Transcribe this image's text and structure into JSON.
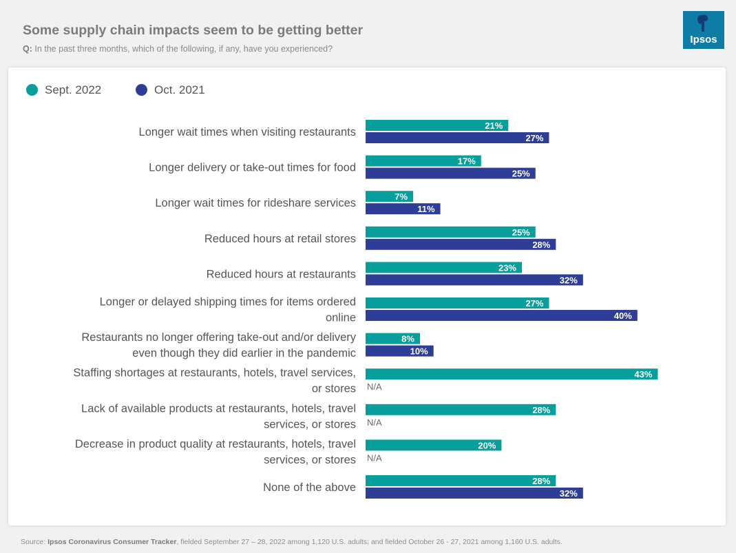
{
  "title": "Some supply chain impacts seem to be getting better",
  "question_prefix": "Q:",
  "question_text": " In the past three months, which of the following, if any, have you experienced?",
  "logo_text": "Ipsos",
  "source_prefix": "Source: ",
  "source_bold": "Ipsos Coronavirus Consumer Tracker",
  "source_rest": ", fielded September 27 – 28, 2022 among 1,120 U.S. adults; and fielded October 26 - 27, 2021 among 1,160 U.S. adults.",
  "colors": {
    "sept2022": "#079e9b",
    "oct2021": "#2e3e96",
    "label_text": "#555555",
    "na_text": "#6b6b6b"
  },
  "chart_data": {
    "type": "bar",
    "orientation": "horizontal",
    "value_suffix": "%",
    "xlim": [
      0,
      45
    ],
    "legend": [
      "Sept. 2022",
      "Oct. 2021"
    ],
    "categories": [
      [
        "Longer wait times when visiting restaurants"
      ],
      [
        "Longer delivery or take-out times for food"
      ],
      [
        "Longer wait times for rideshare services"
      ],
      [
        "Reduced hours at retail stores"
      ],
      [
        "Reduced hours at restaurants"
      ],
      [
        "Longer or delayed shipping times for items ordered",
        "online"
      ],
      [
        "Restaurants no longer offering take-out and/or delivery",
        "even though they did earlier in the pandemic"
      ],
      [
        "Staffing shortages at restaurants, hotels, travel services,",
        "or stores"
      ],
      [
        "Lack of available products at restaurants, hotels, travel",
        "services, or stores"
      ],
      [
        "Decrease in product quality at restaurants, hotels, travel",
        "services, or stores"
      ],
      [
        "None of the above"
      ]
    ],
    "series": [
      {
        "name": "Sept. 2022",
        "values": [
          21,
          17,
          7,
          25,
          23,
          27,
          8,
          43,
          28,
          20,
          28
        ]
      },
      {
        "name": "Oct. 2021",
        "values": [
          27,
          25,
          11,
          28,
          32,
          40,
          10,
          null,
          null,
          null,
          32
        ]
      }
    ],
    "missing_label": "N/A"
  }
}
